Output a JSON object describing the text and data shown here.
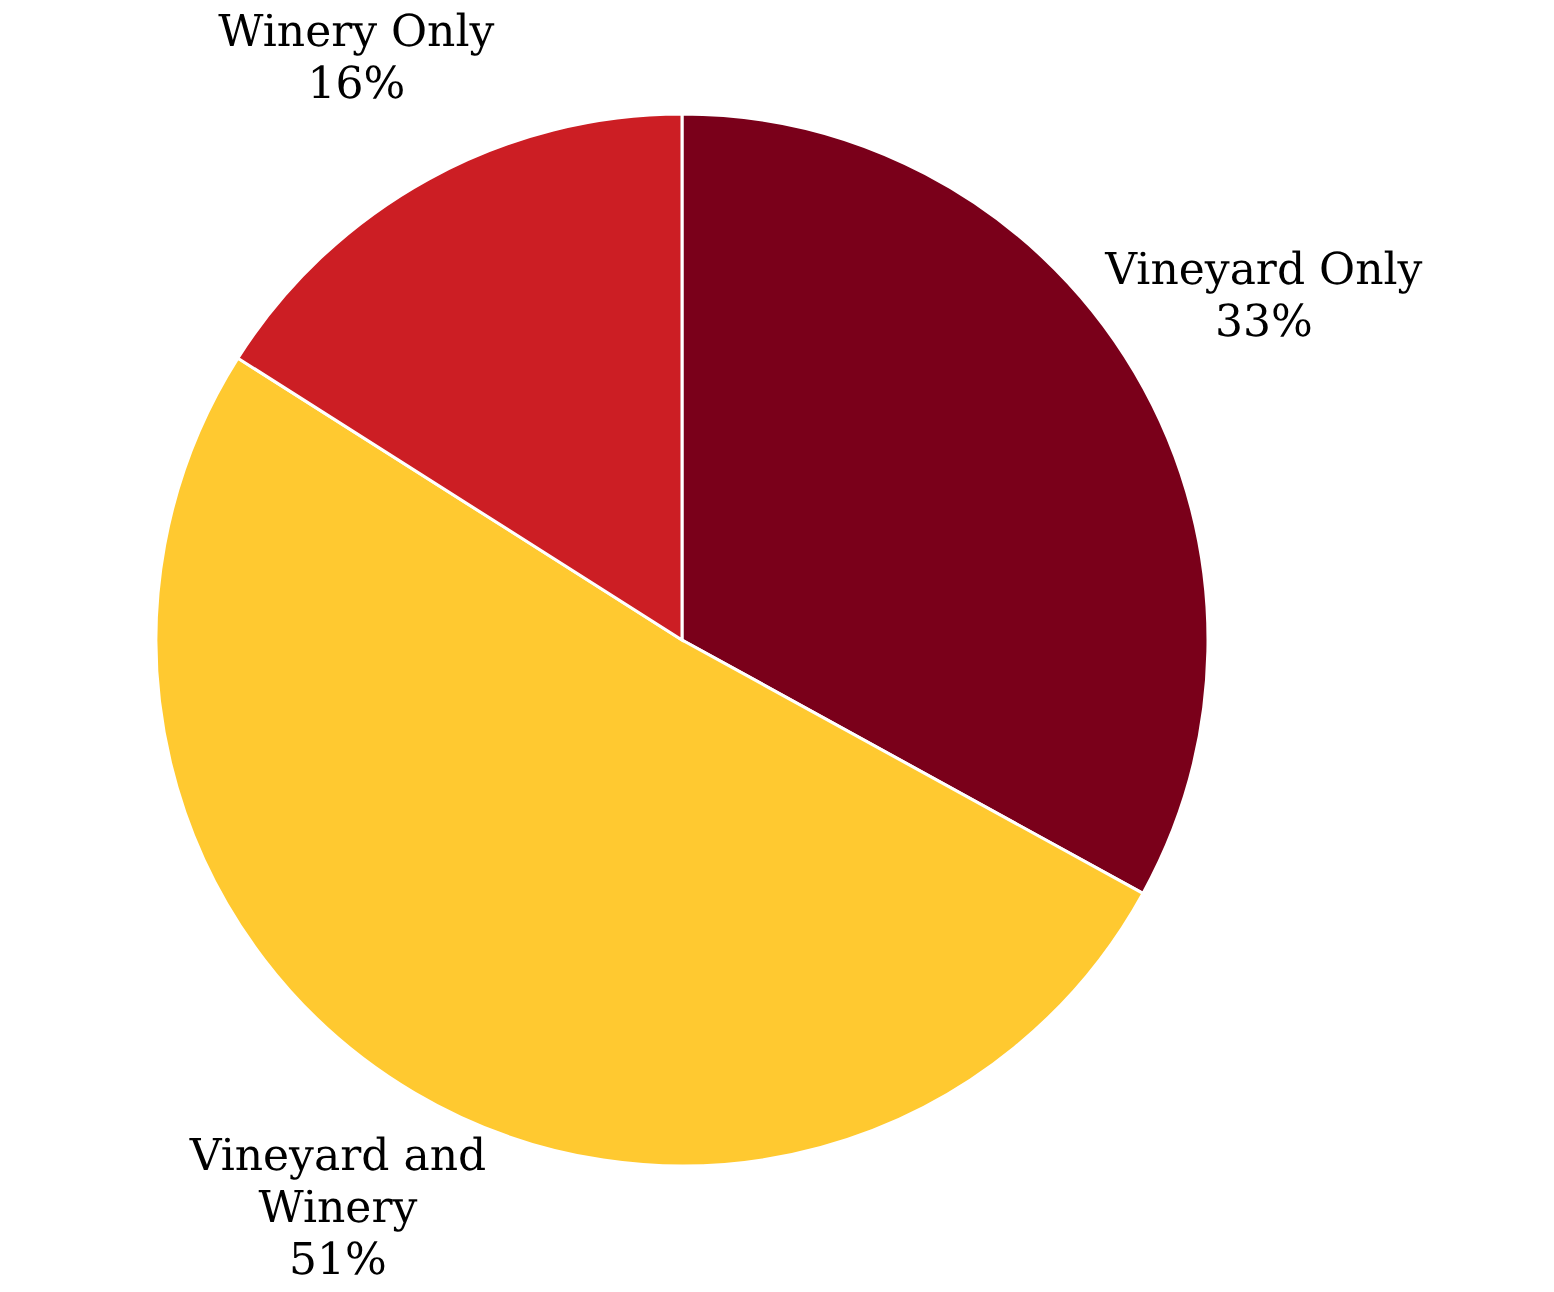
{
  "chart_data": {
    "type": "pie",
    "categories": [
      "Vineyard Only",
      "Vineyard and Winery",
      "Winery Only"
    ],
    "values": [
      33,
      51,
      16
    ],
    "colors": [
      "#7a001a",
      "#ffc930",
      "#cc1e24"
    ],
    "value_labels": [
      "33%",
      "51%",
      "16%"
    ]
  }
}
